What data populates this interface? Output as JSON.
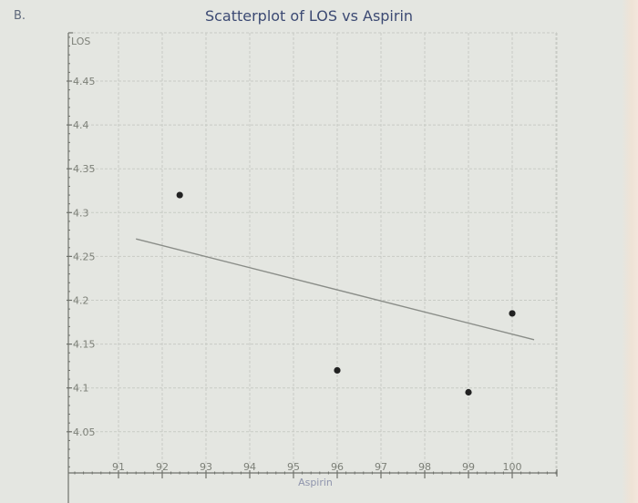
{
  "page": {
    "question_label": "B.",
    "colors": {
      "background": "#e4e6e1",
      "title": "#3c4a73",
      "axis": "#6f726c",
      "grid": "#c8cbc5",
      "points": "#222222",
      "fit_line": "#8a8d88"
    }
  },
  "chart_data": {
    "type": "scatter",
    "title": "Scatterplot of LOS vs Aspirin",
    "xlabel": "Aspirin",
    "ylabel": "LOS",
    "xlim": [
      90,
      101.5
    ],
    "ylim": [
      4.0,
      4.5
    ],
    "x_ticks": [
      91,
      92,
      93,
      94,
      95,
      96,
      97,
      98,
      99,
      100
    ],
    "y_ticks": [
      4.05,
      4.1,
      4.15,
      4.2,
      4.25,
      4.3,
      4.35,
      4.4,
      4.45
    ],
    "y_tick_labels": [
      "4.05",
      "4.1",
      "4.15",
      "4.2",
      "4.25",
      "4.3",
      "4.35",
      "4.4",
      "4.45"
    ],
    "grid": true,
    "legend": null,
    "series": [
      {
        "name": "LOS vs Aspirin",
        "points": [
          {
            "x": 92.4,
            "y": 4.32
          },
          {
            "x": 96,
            "y": 4.12
          },
          {
            "x": 99,
            "y": 4.095
          },
          {
            "x": 100,
            "y": 4.185
          }
        ]
      }
    ],
    "fit_line": {
      "type": "linear regression",
      "start": {
        "x": 91.4,
        "y": 4.27
      },
      "end": {
        "x": 100.5,
        "y": 4.155
      }
    }
  }
}
